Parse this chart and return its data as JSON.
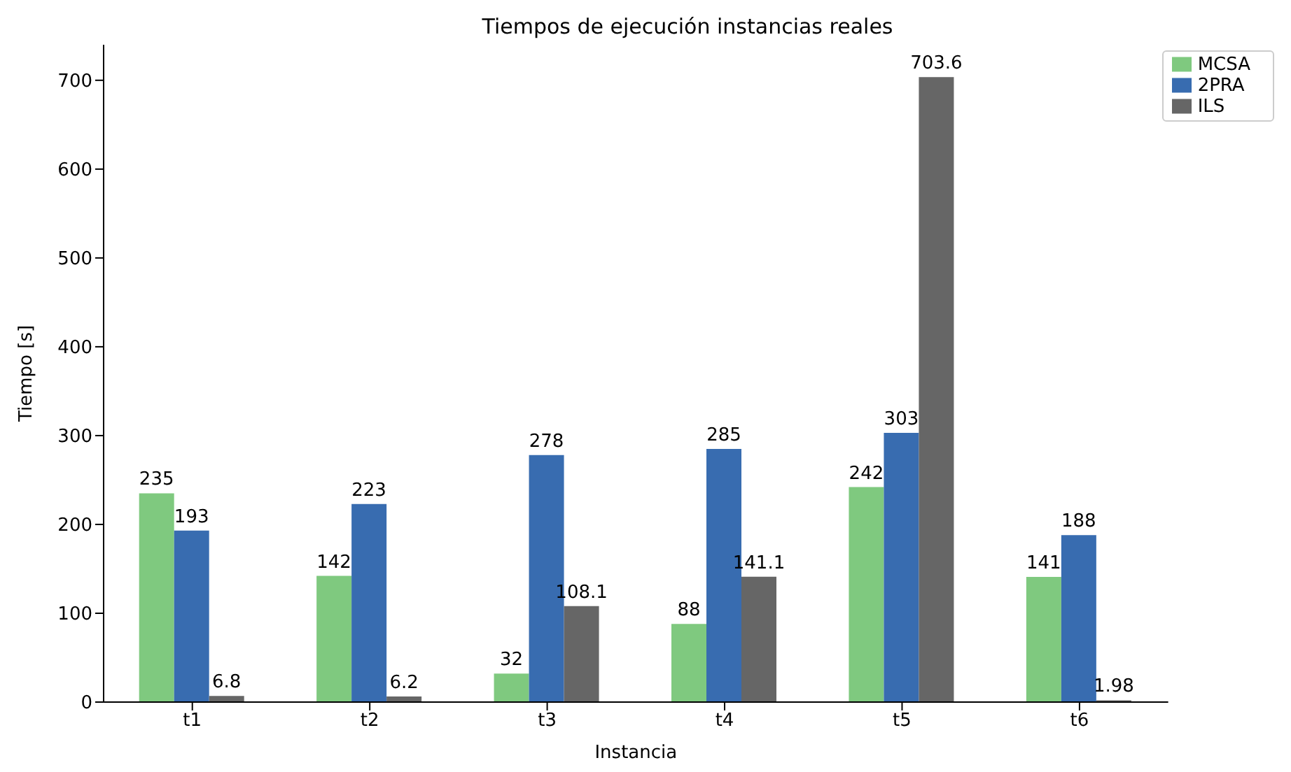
{
  "chart_data": {
    "type": "bar",
    "title": "Tiempos de ejecución instancias reales",
    "xlabel": "Instancia",
    "ylabel": "Tiempo [s]",
    "categories": [
      "t1",
      "t2",
      "t3",
      "t4",
      "t5",
      "t6"
    ],
    "series": [
      {
        "name": "MCSA",
        "color": "#7fc97f",
        "values": [
          235,
          142,
          32,
          88,
          242,
          141
        ]
      },
      {
        "name": "2PRA",
        "color": "#386cb0",
        "values": [
          193,
          223,
          278,
          285,
          303,
          188
        ]
      },
      {
        "name": "ILS",
        "color": "#666666",
        "values": [
          6.8,
          6.2,
          108.1,
          141.1,
          703.6,
          1.98
        ]
      }
    ],
    "ylim": [
      0,
      740
    ],
    "yticks": [
      0,
      100,
      200,
      300,
      400,
      500,
      600,
      700
    ],
    "grid": false,
    "legend": "top right",
    "data_labels": true
  }
}
